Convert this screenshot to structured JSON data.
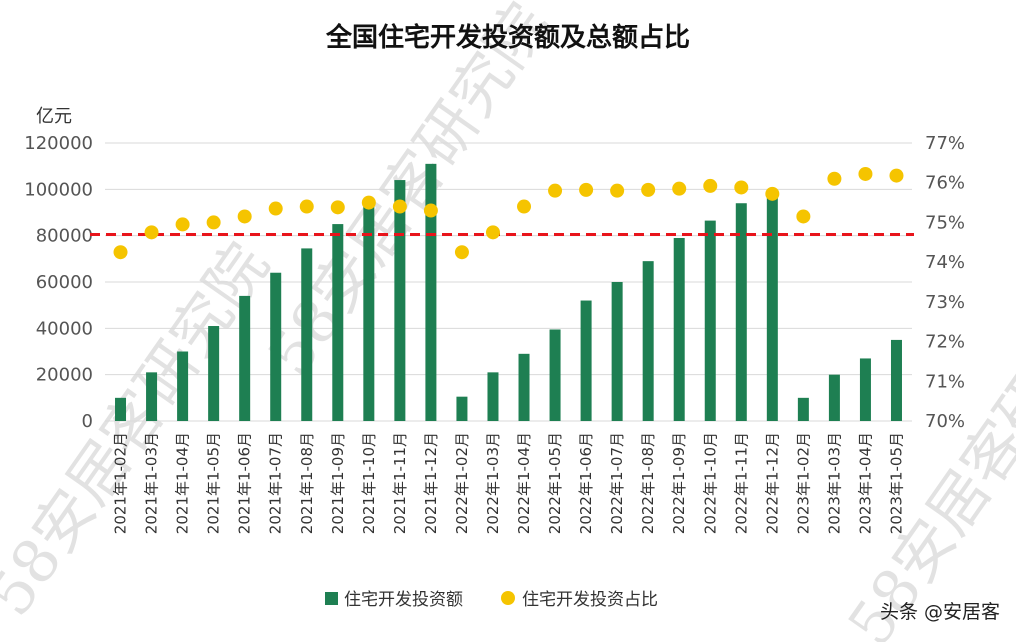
{
  "chart_data": {
    "type": "bar",
    "title": "全国住宅开发投资额及总额占比",
    "y_unit": "亿元",
    "categories": [
      "2021年1-02月",
      "2021年1-03月",
      "2021年1-04月",
      "2021年1-05月",
      "2021年1-06月",
      "2021年1-07月",
      "2021年1-08月",
      "2021年1-09月",
      "2021年1-10月",
      "2021年1-11月",
      "2021年1-12月",
      "2022年1-02月",
      "2022年1-03月",
      "2022年1-04月",
      "2022年1-05月",
      "2022年1-06月",
      "2022年1-07月",
      "2022年1-08月",
      "2022年1-09月",
      "2022年1-10月",
      "2022年1-11月",
      "2022年1-12月",
      "2023年1-02月",
      "2023年1-03月",
      "2023年1-04月",
      "2023年1-05月"
    ],
    "series": [
      {
        "name": "住宅开发投资额",
        "axis": "left",
        "type": "bar",
        "color": "#1e7f52",
        "values": [
          10000,
          21000,
          30000,
          41000,
          54000,
          64000,
          74500,
          85000,
          94000,
          104000,
          111000,
          10500,
          21000,
          29000,
          39500,
          52000,
          60000,
          69000,
          79000,
          86500,
          94000,
          97500,
          10000,
          20000,
          27000,
          35000
        ]
      },
      {
        "name": "住宅开发投资占比",
        "axis": "right",
        "type": "scatter",
        "color": "#f5c400",
        "values": [
          74.25,
          74.75,
          74.95,
          75.0,
          75.15,
          75.35,
          75.4,
          75.38,
          75.5,
          75.4,
          75.3,
          74.25,
          74.75,
          75.4,
          75.8,
          75.82,
          75.8,
          75.82,
          75.85,
          75.92,
          75.88,
          75.72,
          75.15,
          76.1,
          76.22,
          76.18
        ]
      }
    ],
    "reference_line": {
      "axis": "left",
      "value": 80500,
      "style": "dashed",
      "color": "#e8141b"
    },
    "y_left": {
      "min": 0,
      "max": 120000,
      "ticks": [
        0,
        20000,
        40000,
        60000,
        80000,
        100000,
        120000
      ]
    },
    "y_right": {
      "min": 70,
      "max": 77,
      "ticks": [
        "70%",
        "71%",
        "72%",
        "73%",
        "74%",
        "75%",
        "76%",
        "77%"
      ]
    },
    "grid": true,
    "legend_position": "bottom"
  },
  "watermark": "58安居客研究院",
  "brand_tag": "头条 @安居客"
}
